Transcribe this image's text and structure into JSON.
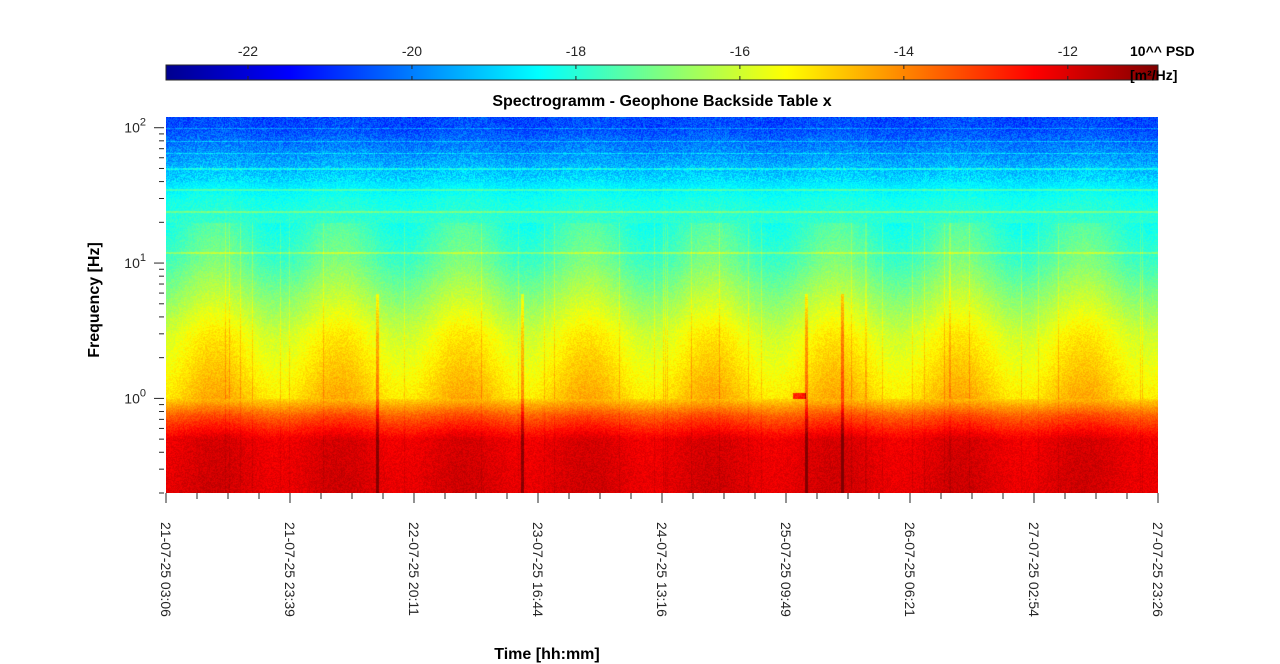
{
  "chart_data": {
    "type": "heatmap",
    "title": "Spectrogramm - Geophone Backside Table x",
    "xlabel": "Time [hh:mm]",
    "ylabel": "Frequency [Hz]",
    "y_scale": "log",
    "ylim": [
      0.2,
      120
    ],
    "y_ticks": [
      {
        "value": 1,
        "base": "10",
        "exp": "0"
      },
      {
        "value": 10,
        "base": "10",
        "exp": "1"
      },
      {
        "value": 100,
        "base": "10",
        "exp": "2"
      }
    ],
    "x_ticks": [
      "21-07-25 03:06",
      "21-07-25 23:39",
      "22-07-25 20:11",
      "23-07-25 16:44",
      "24-07-25 13:16",
      "25-07-25 09:49",
      "26-07-25 06:21",
      "27-07-25 02:54",
      "27-07-25 23:26"
    ],
    "colorbar": {
      "label_line1": "10^^ PSD",
      "label_line2": "[m²/Hz]",
      "colormap": "jet",
      "range": [
        -23,
        -10.9
      ],
      "ticks": [
        -22,
        -20,
        -18,
        -16,
        -14,
        -12
      ],
      "tick_labels": [
        "-22",
        "-20",
        "-18",
        "-16",
        "-14",
        "-12"
      ]
    },
    "psd_profile_log10": [
      {
        "frequency_hz": 0.25,
        "psd": -12.0
      },
      {
        "frequency_hz": 0.5,
        "psd": -12.1
      },
      {
        "frequency_hz": 0.75,
        "psd": -13.4
      },
      {
        "frequency_hz": 1.0,
        "psd": -14.8
      },
      {
        "frequency_hz": 3.0,
        "psd": -15.6
      },
      {
        "frequency_hz": 10.0,
        "psd": -17.3
      },
      {
        "frequency_hz": 30.0,
        "psd": -18.2
      },
      {
        "frequency_hz": 100.0,
        "psd": -20.6
      }
    ]
  }
}
